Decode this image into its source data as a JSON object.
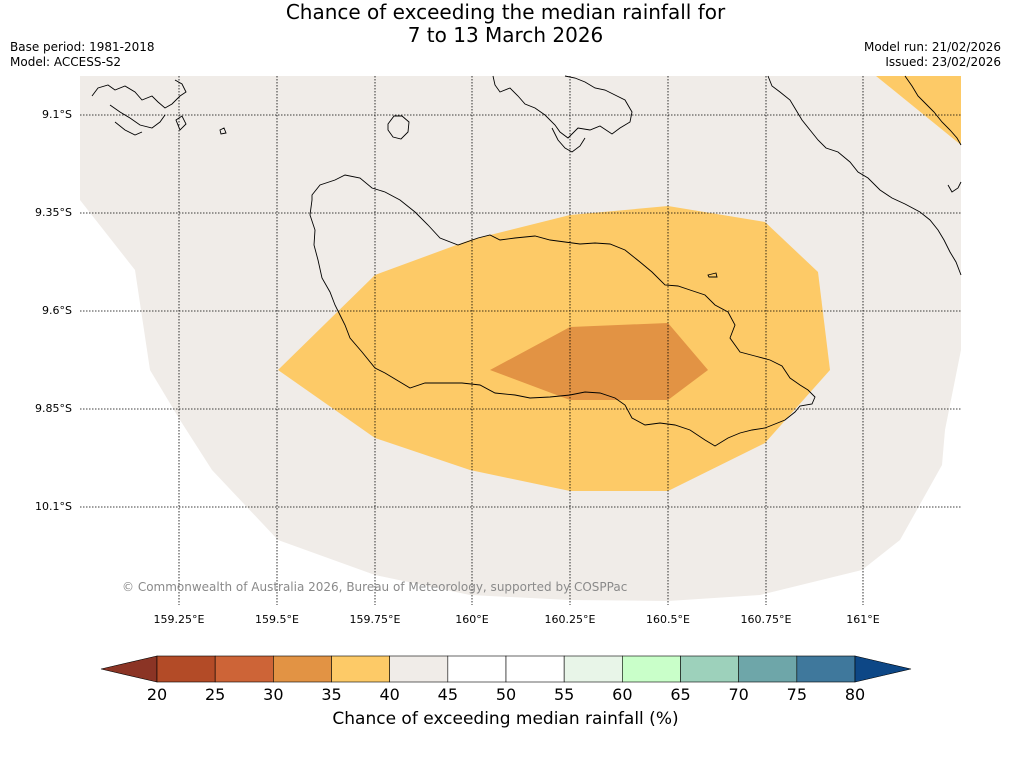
{
  "header": {
    "title_line1": "Chance of exceeding the median rainfall for",
    "title_line2": "7 to 13 March 2026",
    "base_period": "Base period: 1981-2018",
    "model": "Model: ACCESS-S2",
    "model_run": "Model run: 21/02/2026",
    "issued": "Issued: 23/02/2026"
  },
  "map": {
    "lat_labels": [
      "9.1°S",
      "9.35°S",
      "9.6°S",
      "9.85°S",
      "10.1°S"
    ],
    "lon_labels": [
      "159.25°E",
      "159.5°E",
      "159.75°E",
      "160°E",
      "160.25°E",
      "160.5°E",
      "160.75°E",
      "161°E"
    ],
    "copyright": "© Commonwealth of Australia 2026, Bureau of Meteorology, supported by COSPPac",
    "colors": {
      "neutral": "#f0ece8",
      "c35_40": "#fdca67",
      "c30_35": "#e29344",
      "coast": "#000000"
    }
  },
  "colorbar": {
    "title": "Chance of exceeding median rainfall (%)",
    "ticks": [
      "20",
      "25",
      "30",
      "35",
      "40",
      "45",
      "50",
      "55",
      "60",
      "65",
      "70",
      "75",
      "80"
    ],
    "under_color": "#8b3425",
    "over_color": "#0d4786",
    "colors": [
      "#b34b27",
      "#cd6437",
      "#e29344",
      "#fdca67",
      "#f0ece8",
      "#ffffff",
      "#ffffff",
      "#e8f5e8",
      "#c9ffc9",
      "#9dd1bb",
      "#6ea6a9",
      "#3f789c"
    ]
  }
}
